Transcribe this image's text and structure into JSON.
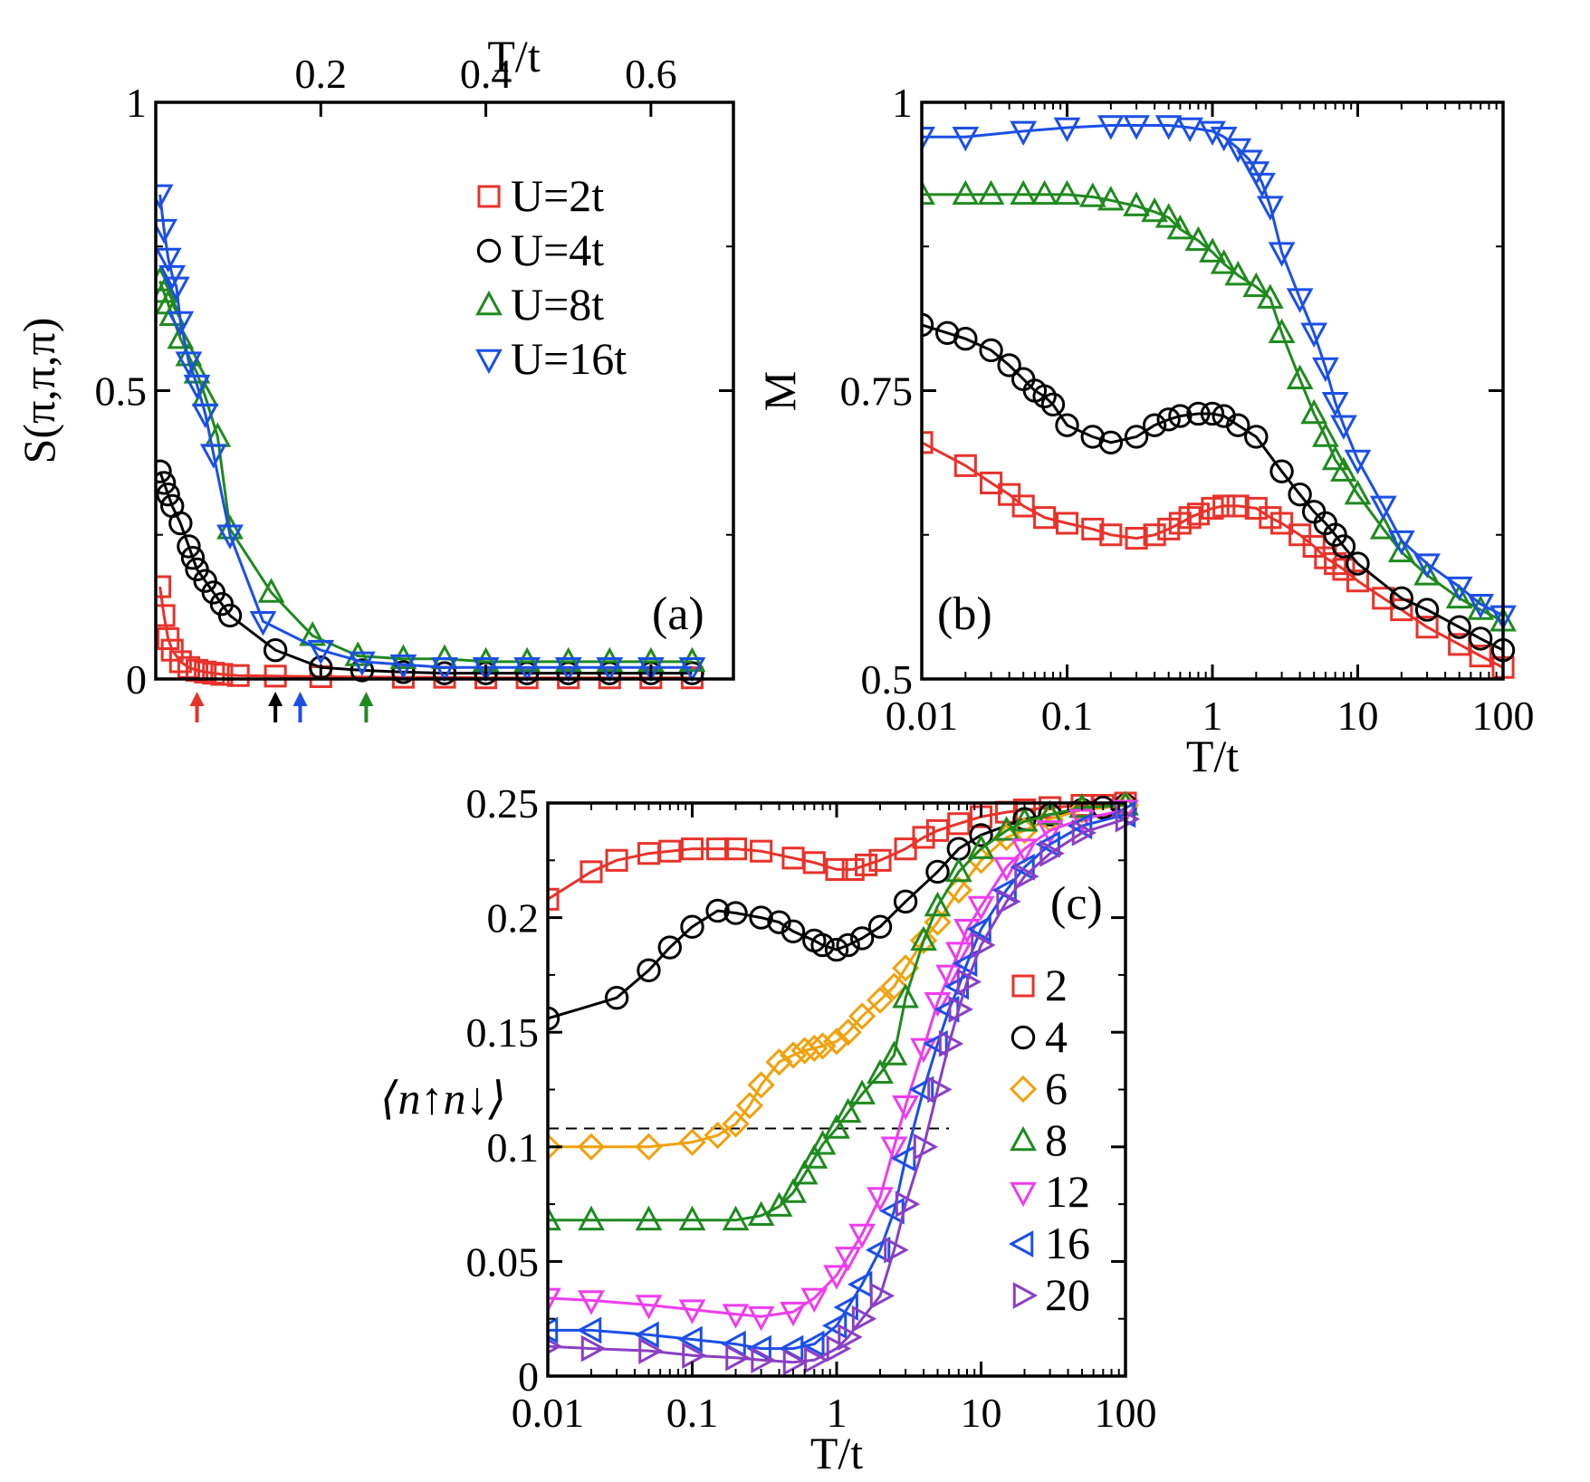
{
  "chart_data": [
    {
      "id": "a",
      "type": "line",
      "panel_label": "(a)",
      "xlabel": "T/t",
      "xlabel_position": "top",
      "ylabel": "S(π,π,π)",
      "xlim": [
        0,
        0.7
      ],
      "ylim": [
        0,
        1
      ],
      "xticks": [
        0.2,
        0.4,
        0.6
      ],
      "xtick_labels": [
        "0.2",
        "0.4",
        "0.6"
      ],
      "yticks": [
        0,
        0.5,
        1
      ],
      "ytick_labels": [
        "0",
        "0.5",
        "1"
      ],
      "legend_position": "top-right",
      "arrows": [
        {
          "x": 0.05,
          "color": "#e8322a"
        },
        {
          "x": 0.145,
          "color": "#000000"
        },
        {
          "x": 0.175,
          "color": "#1b4fe6"
        },
        {
          "x": 0.255,
          "color": "#1f8a1f"
        }
      ],
      "series": [
        {
          "name": "U=2t",
          "color": "#e8322a",
          "marker": "square",
          "x": [
            0.005,
            0.01,
            0.015,
            0.02,
            0.03,
            0.04,
            0.05,
            0.06,
            0.07,
            0.08,
            0.1,
            0.145,
            0.2,
            0.3,
            0.35,
            0.4,
            0.45,
            0.5,
            0.55,
            0.6,
            0.65
          ],
          "y": [
            0.16,
            0.11,
            0.07,
            0.05,
            0.03,
            0.02,
            0.015,
            0.012,
            0.01,
            0.008,
            0.006,
            0.005,
            0.004,
            0.003,
            0.003,
            0.002,
            0.002,
            0.002,
            0.002,
            0.002,
            0.002
          ]
        },
        {
          "name": "U=4t",
          "color": "#000000",
          "marker": "circle",
          "x": [
            0.005,
            0.01,
            0.015,
            0.02,
            0.03,
            0.04,
            0.045,
            0.05,
            0.06,
            0.07,
            0.08,
            0.09,
            0.145,
            0.2,
            0.25,
            0.3,
            0.35,
            0.4,
            0.45,
            0.5,
            0.55,
            0.6,
            0.65
          ],
          "y": [
            0.36,
            0.34,
            0.32,
            0.3,
            0.27,
            0.23,
            0.21,
            0.19,
            0.17,
            0.15,
            0.13,
            0.11,
            0.05,
            0.02,
            0.015,
            0.012,
            0.01,
            0.01,
            0.01,
            0.01,
            0.01,
            0.01,
            0.01
          ]
        },
        {
          "name": "U=8t",
          "color": "#1f8a1f",
          "marker": "triangle-up",
          "x": [
            0.005,
            0.01,
            0.015,
            0.02,
            0.03,
            0.04,
            0.05,
            0.06,
            0.075,
            0.09,
            0.14,
            0.19,
            0.245,
            0.3,
            0.35,
            0.4,
            0.45,
            0.5,
            0.55,
            0.6,
            0.65
          ],
          "y": [
            0.69,
            0.67,
            0.65,
            0.63,
            0.59,
            0.56,
            0.53,
            0.49,
            0.42,
            0.26,
            0.15,
            0.075,
            0.04,
            0.035,
            0.035,
            0.03,
            0.03,
            0.03,
            0.03,
            0.03,
            0.03
          ]
        },
        {
          "name": "U=16t",
          "color": "#1b4fe6",
          "marker": "triangle-down",
          "x": [
            0.005,
            0.01,
            0.015,
            0.02,
            0.025,
            0.03,
            0.04,
            0.05,
            0.06,
            0.07,
            0.09,
            0.13,
            0.2,
            0.25,
            0.3,
            0.35,
            0.4,
            0.45,
            0.5,
            0.55,
            0.6,
            0.65
          ],
          "y": [
            0.84,
            0.78,
            0.73,
            0.7,
            0.68,
            0.62,
            0.55,
            0.51,
            0.46,
            0.39,
            0.25,
            0.1,
            0.05,
            0.03,
            0.025,
            0.02,
            0.02,
            0.02,
            0.02,
            0.02,
            0.02,
            0.02
          ]
        }
      ]
    },
    {
      "id": "b",
      "type": "line",
      "panel_label": "(b)",
      "xlabel": "T/t",
      "ylabel": "M",
      "xscale": "log",
      "xlim": [
        0.01,
        100
      ],
      "ylim": [
        0.5,
        1
      ],
      "xticks": [
        0.01,
        0.1,
        1,
        10,
        100
      ],
      "xtick_labels": [
        "0.01",
        "0.1",
        "1",
        "10",
        "100"
      ],
      "yticks": [
        0.5,
        0.75,
        1
      ],
      "ytick_labels": [
        "0.5",
        "0.75",
        "1"
      ],
      "series": [
        {
          "name": "U=2t",
          "color": "#e8322a",
          "marker": "square",
          "x": [
            0.01,
            0.02,
            0.03,
            0.04,
            0.05,
            0.07,
            0.1,
            0.15,
            0.2,
            0.3,
            0.4,
            0.5,
            0.6,
            0.7,
            0.8,
            1,
            1.2,
            1.5,
            2,
            2.5,
            3,
            4,
            5,
            6,
            7,
            8,
            10,
            15,
            20,
            30,
            50,
            70,
            100
          ],
          "y": [
            0.705,
            0.685,
            0.67,
            0.66,
            0.65,
            0.64,
            0.635,
            0.63,
            0.625,
            0.622,
            0.625,
            0.63,
            0.635,
            0.64,
            0.643,
            0.648,
            0.65,
            0.65,
            0.648,
            0.64,
            0.635,
            0.625,
            0.615,
            0.605,
            0.6,
            0.595,
            0.585,
            0.57,
            0.56,
            0.545,
            0.53,
            0.52,
            0.51
          ]
        },
        {
          "name": "U=4t",
          "color": "#000000",
          "marker": "circle",
          "x": [
            0.01,
            0.015,
            0.02,
            0.03,
            0.04,
            0.05,
            0.06,
            0.07,
            0.08,
            0.1,
            0.15,
            0.2,
            0.3,
            0.4,
            0.5,
            0.6,
            0.8,
            1,
            1.2,
            1.5,
            2,
            3,
            4,
            5,
            6,
            7,
            8,
            10,
            20,
            30,
            50,
            70,
            100
          ],
          "y": [
            0.807,
            0.8,
            0.795,
            0.785,
            0.772,
            0.76,
            0.75,
            0.745,
            0.738,
            0.72,
            0.71,
            0.705,
            0.71,
            0.72,
            0.725,
            0.728,
            0.73,
            0.73,
            0.728,
            0.72,
            0.71,
            0.68,
            0.66,
            0.645,
            0.635,
            0.625,
            0.615,
            0.6,
            0.57,
            0.56,
            0.545,
            0.535,
            0.525
          ]
        },
        {
          "name": "U=8t",
          "color": "#1f8a1f",
          "marker": "triangle-up",
          "x": [
            0.01,
            0.02,
            0.03,
            0.05,
            0.07,
            0.1,
            0.15,
            0.2,
            0.3,
            0.4,
            0.5,
            0.6,
            0.8,
            1,
            1.2,
            1.5,
            2,
            2.5,
            3,
            4,
            5,
            6,
            7,
            8,
            10,
            15,
            20,
            30,
            50,
            70,
            100
          ],
          "y": [
            0.92,
            0.92,
            0.92,
            0.92,
            0.92,
            0.92,
            0.918,
            0.915,
            0.91,
            0.905,
            0.9,
            0.89,
            0.88,
            0.87,
            0.86,
            0.85,
            0.84,
            0.83,
            0.8,
            0.76,
            0.73,
            0.71,
            0.69,
            0.68,
            0.66,
            0.63,
            0.61,
            0.59,
            0.57,
            0.56,
            0.55
          ]
        },
        {
          "name": "U=16t",
          "color": "#1b4fe6",
          "marker": "triangle-down",
          "x": [
            0.01,
            0.02,
            0.05,
            0.1,
            0.2,
            0.3,
            0.5,
            0.7,
            1,
            1.2,
            1.5,
            1.8,
            2,
            2.2,
            2.5,
            3,
            4,
            5,
            6,
            7,
            8,
            10,
            15,
            20,
            30,
            50,
            70,
            100
          ],
          "y": [
            0.97,
            0.97,
            0.975,
            0.978,
            0.98,
            0.98,
            0.98,
            0.978,
            0.975,
            0.97,
            0.96,
            0.95,
            0.94,
            0.93,
            0.91,
            0.87,
            0.83,
            0.8,
            0.77,
            0.74,
            0.72,
            0.69,
            0.65,
            0.62,
            0.6,
            0.58,
            0.565,
            0.555
          ]
        }
      ]
    },
    {
      "id": "c",
      "type": "line",
      "panel_label": "(c)",
      "xlabel": "T/t",
      "ylabel": "⟨n↑n↓⟩",
      "xscale": "log",
      "xlim": [
        0.01,
        100
      ],
      "ylim": [
        0,
        0.25
      ],
      "xticks": [
        0.01,
        0.1,
        1,
        10,
        100
      ],
      "xtick_labels": [
        "0.01",
        "0.1",
        "1",
        "10",
        "100"
      ],
      "yticks": [
        0,
        0.05,
        0.1,
        0.15,
        0.2,
        0.25
      ],
      "ytick_labels": [
        "0",
        "0.05",
        "0.1",
        "0.15",
        "0.2",
        "0.25"
      ],
      "reference_line": {
        "y": 0.108,
        "x_start": 0.01,
        "x_end": 6,
        "style": "dashed"
      },
      "legend_position": "right",
      "series": [
        {
          "name": "2",
          "color": "#e8322a",
          "marker": "square",
          "x": [
            0.01,
            0.02,
            0.03,
            0.05,
            0.07,
            0.1,
            0.15,
            0.2,
            0.3,
            0.5,
            0.7,
            1,
            1.3,
            1.6,
            2,
            3,
            4,
            5,
            7,
            10,
            15,
            20,
            30,
            50,
            70,
            100
          ],
          "y": [
            0.208,
            0.22,
            0.225,
            0.228,
            0.229,
            0.23,
            0.23,
            0.23,
            0.229,
            0.226,
            0.224,
            0.221,
            0.221,
            0.223,
            0.225,
            0.23,
            0.235,
            0.238,
            0.241,
            0.244,
            0.246,
            0.247,
            0.248,
            0.249,
            0.249,
            0.25
          ]
        },
        {
          "name": "4",
          "color": "#000000",
          "marker": "circle",
          "x": [
            0.01,
            0.03,
            0.05,
            0.07,
            0.1,
            0.15,
            0.2,
            0.3,
            0.4,
            0.5,
            0.7,
            0.8,
            1,
            1.2,
            1.5,
            2,
            3,
            5,
            7,
            10,
            20,
            30,
            50,
            70,
            100
          ],
          "y": [
            0.156,
            0.165,
            0.177,
            0.187,
            0.196,
            0.203,
            0.202,
            0.2,
            0.198,
            0.194,
            0.19,
            0.188,
            0.186,
            0.188,
            0.191,
            0.196,
            0.207,
            0.22,
            0.23,
            0.236,
            0.243,
            0.245,
            0.247,
            0.248,
            0.249
          ]
        },
        {
          "name": "6",
          "color": "#f0a10c",
          "marker": "diamond",
          "x": [
            0.01,
            0.02,
            0.05,
            0.1,
            0.15,
            0.2,
            0.25,
            0.3,
            0.4,
            0.5,
            0.6,
            0.7,
            0.8,
            1,
            1.2,
            1.5,
            2,
            2.5,
            3,
            4,
            5,
            7,
            10,
            15,
            20,
            30,
            50,
            100
          ],
          "y": [
            0.1,
            0.1,
            0.1,
            0.102,
            0.105,
            0.11,
            0.118,
            0.127,
            0.137,
            0.14,
            0.142,
            0.143,
            0.144,
            0.146,
            0.15,
            0.157,
            0.164,
            0.17,
            0.178,
            0.19,
            0.198,
            0.212,
            0.225,
            0.235,
            0.238,
            0.243,
            0.247,
            0.249
          ]
        },
        {
          "name": "8",
          "color": "#1f8a1f",
          "marker": "triangle-up",
          "x": [
            0.01,
            0.02,
            0.05,
            0.1,
            0.2,
            0.3,
            0.4,
            0.5,
            0.6,
            0.7,
            0.8,
            1,
            1.2,
            1.5,
            2,
            2.5,
            3,
            4,
            5,
            7,
            10,
            15,
            20,
            30,
            50,
            100
          ],
          "y": [
            0.068,
            0.068,
            0.068,
            0.068,
            0.068,
            0.07,
            0.074,
            0.08,
            0.088,
            0.095,
            0.101,
            0.108,
            0.115,
            0.123,
            0.132,
            0.14,
            0.165,
            0.19,
            0.205,
            0.22,
            0.23,
            0.238,
            0.242,
            0.245,
            0.248,
            0.249
          ]
        },
        {
          "name": "12",
          "color": "#ee3cee",
          "marker": "triangle-down",
          "x": [
            0.01,
            0.02,
            0.05,
            0.1,
            0.2,
            0.3,
            0.5,
            0.7,
            1,
            1.2,
            1.5,
            2,
            2.5,
            3,
            4,
            5,
            6,
            7,
            8,
            10,
            15,
            20,
            30,
            50,
            100
          ],
          "y": [
            0.034,
            0.033,
            0.031,
            0.029,
            0.027,
            0.026,
            0.028,
            0.034,
            0.044,
            0.052,
            0.062,
            0.078,
            0.1,
            0.118,
            0.143,
            0.163,
            0.175,
            0.185,
            0.195,
            0.205,
            0.222,
            0.23,
            0.238,
            0.243,
            0.247
          ]
        },
        {
          "name": "16",
          "color": "#1b4fe6",
          "marker": "triangle-left",
          "x": [
            0.01,
            0.02,
            0.05,
            0.1,
            0.2,
            0.3,
            0.5,
            0.7,
            1,
            1.2,
            1.5,
            2,
            2.5,
            3,
            4,
            5,
            6,
            7,
            8,
            10,
            15,
            20,
            30,
            50,
            100
          ],
          "y": [
            0.02,
            0.02,
            0.018,
            0.016,
            0.014,
            0.012,
            0.012,
            0.014,
            0.022,
            0.03,
            0.04,
            0.055,
            0.072,
            0.095,
            0.125,
            0.145,
            0.16,
            0.17,
            0.18,
            0.195,
            0.212,
            0.222,
            0.232,
            0.24,
            0.245
          ]
        },
        {
          "name": "20",
          "color": "#8a3fc4",
          "marker": "triangle-right",
          "x": [
            0.01,
            0.02,
            0.05,
            0.1,
            0.2,
            0.3,
            0.5,
            0.7,
            1,
            1.2,
            1.5,
            2,
            2.5,
            3,
            4,
            5,
            6,
            7,
            8,
            10,
            15,
            20,
            30,
            50,
            100
          ],
          "y": [
            0.013,
            0.012,
            0.011,
            0.009,
            0.008,
            0.007,
            0.006,
            0.007,
            0.012,
            0.017,
            0.025,
            0.035,
            0.055,
            0.075,
            0.1,
            0.125,
            0.145,
            0.16,
            0.172,
            0.188,
            0.207,
            0.218,
            0.228,
            0.237,
            0.243
          ]
        }
      ]
    }
  ]
}
